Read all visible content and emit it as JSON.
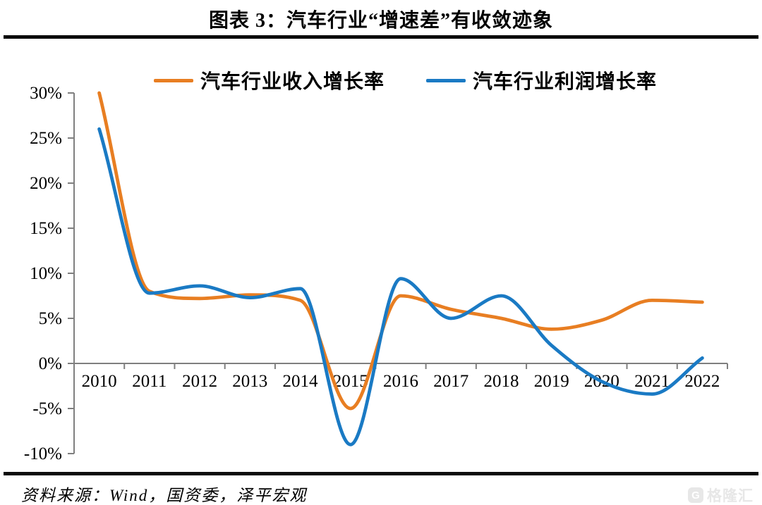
{
  "title": "图表 3：汽车行业“增速差”有收敛迹象",
  "source": "资料来源：Wind，国资委，泽平宏观",
  "watermark": "格隆汇",
  "colors": {
    "axis": "#7f7f7f",
    "text": "#000000",
    "rule": "#0b0b0b",
    "revenue_line": "#e87e22",
    "profit_line": "#1a7ac4",
    "watermark": "#e7e7e7"
  },
  "chart_data": {
    "type": "line",
    "x": [
      2010,
      2011,
      2012,
      2013,
      2014,
      2015,
      2016,
      2017,
      2018,
      2019,
      2020,
      2021,
      2022
    ],
    "series": [
      {
        "name": "汽车行业收入增长率",
        "color": "#e87e22",
        "values": [
          30.0,
          8.0,
          7.2,
          7.6,
          7.0,
          -5.0,
          7.5,
          6.0,
          5.0,
          3.8,
          4.8,
          7.0,
          6.8
        ]
      },
      {
        "name": "汽车行业利润增长率",
        "color": "#1a7ac4",
        "values": [
          26.0,
          7.8,
          8.6,
          7.3,
          8.3,
          -9.0,
          9.4,
          5.0,
          7.5,
          2.0,
          -2.0,
          -3.4,
          0.6
        ]
      }
    ],
    "ylim": [
      -10,
      30
    ],
    "ytick_step": 5,
    "ytick_labels": [
      "30%",
      "25%",
      "20%",
      "15%",
      "10%",
      "5%",
      "0%",
      "-5%",
      "-10%"
    ],
    "xtick_labels": [
      "2010",
      "2011",
      "2012",
      "2013",
      "2014",
      "2015",
      "2016",
      "2017",
      "2018",
      "2019",
      "2020",
      "2021",
      "2022"
    ],
    "xlabel": "",
    "ylabel": "",
    "grid": false,
    "legend_position": "top",
    "line_style": "smooth"
  }
}
